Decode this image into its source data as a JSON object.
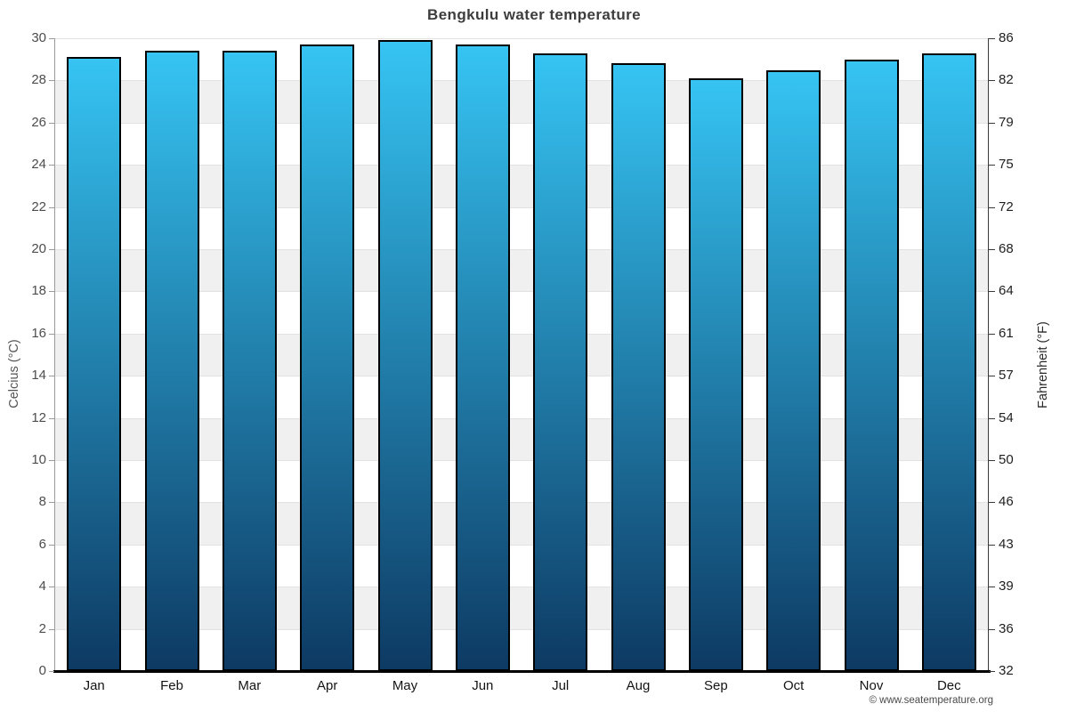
{
  "title": "Bengkulu water temperature",
  "watermark": "© www.seatemperature.org",
  "axes": {
    "left_title": "Celcius (°C)",
    "right_title": "Fahrenheit (°F)",
    "celsius_ticks": [
      30,
      28,
      26,
      24,
      22,
      20,
      18,
      16,
      14,
      12,
      10,
      8,
      6,
      4,
      2,
      0
    ],
    "fahrenheit_ticks": [
      86,
      82,
      79,
      75,
      72,
      68,
      64,
      61,
      57,
      54,
      50,
      46,
      43,
      39,
      36,
      32
    ]
  },
  "chart_data": {
    "type": "bar",
    "title": "Bengkulu water temperature",
    "categories": [
      "Jan",
      "Feb",
      "Mar",
      "Apr",
      "May",
      "Jun",
      "Jul",
      "Aug",
      "Sep",
      "Oct",
      "Nov",
      "Dec"
    ],
    "values": [
      29.1,
      29.4,
      29.4,
      29.7,
      29.9,
      29.7,
      29.3,
      28.8,
      28.1,
      28.5,
      29.0,
      29.3
    ],
    "xlabel": "",
    "ylabel": "Celcius (°C)",
    "ylabel_right": "Fahrenheit (°F)",
    "ylim": [
      0,
      30
    ],
    "grid": "horizontal bands every 2 °C, alternating white and light gray",
    "legend": "none",
    "colors": {
      "bar_gradient_top": "#36c4f3",
      "bar_gradient_bottom": "#0d3a63",
      "bar_border": "#000000",
      "band_gray": "#f0f0f0",
      "gridline": "#e2e2e2",
      "title_text": "#3d3d3d"
    }
  }
}
